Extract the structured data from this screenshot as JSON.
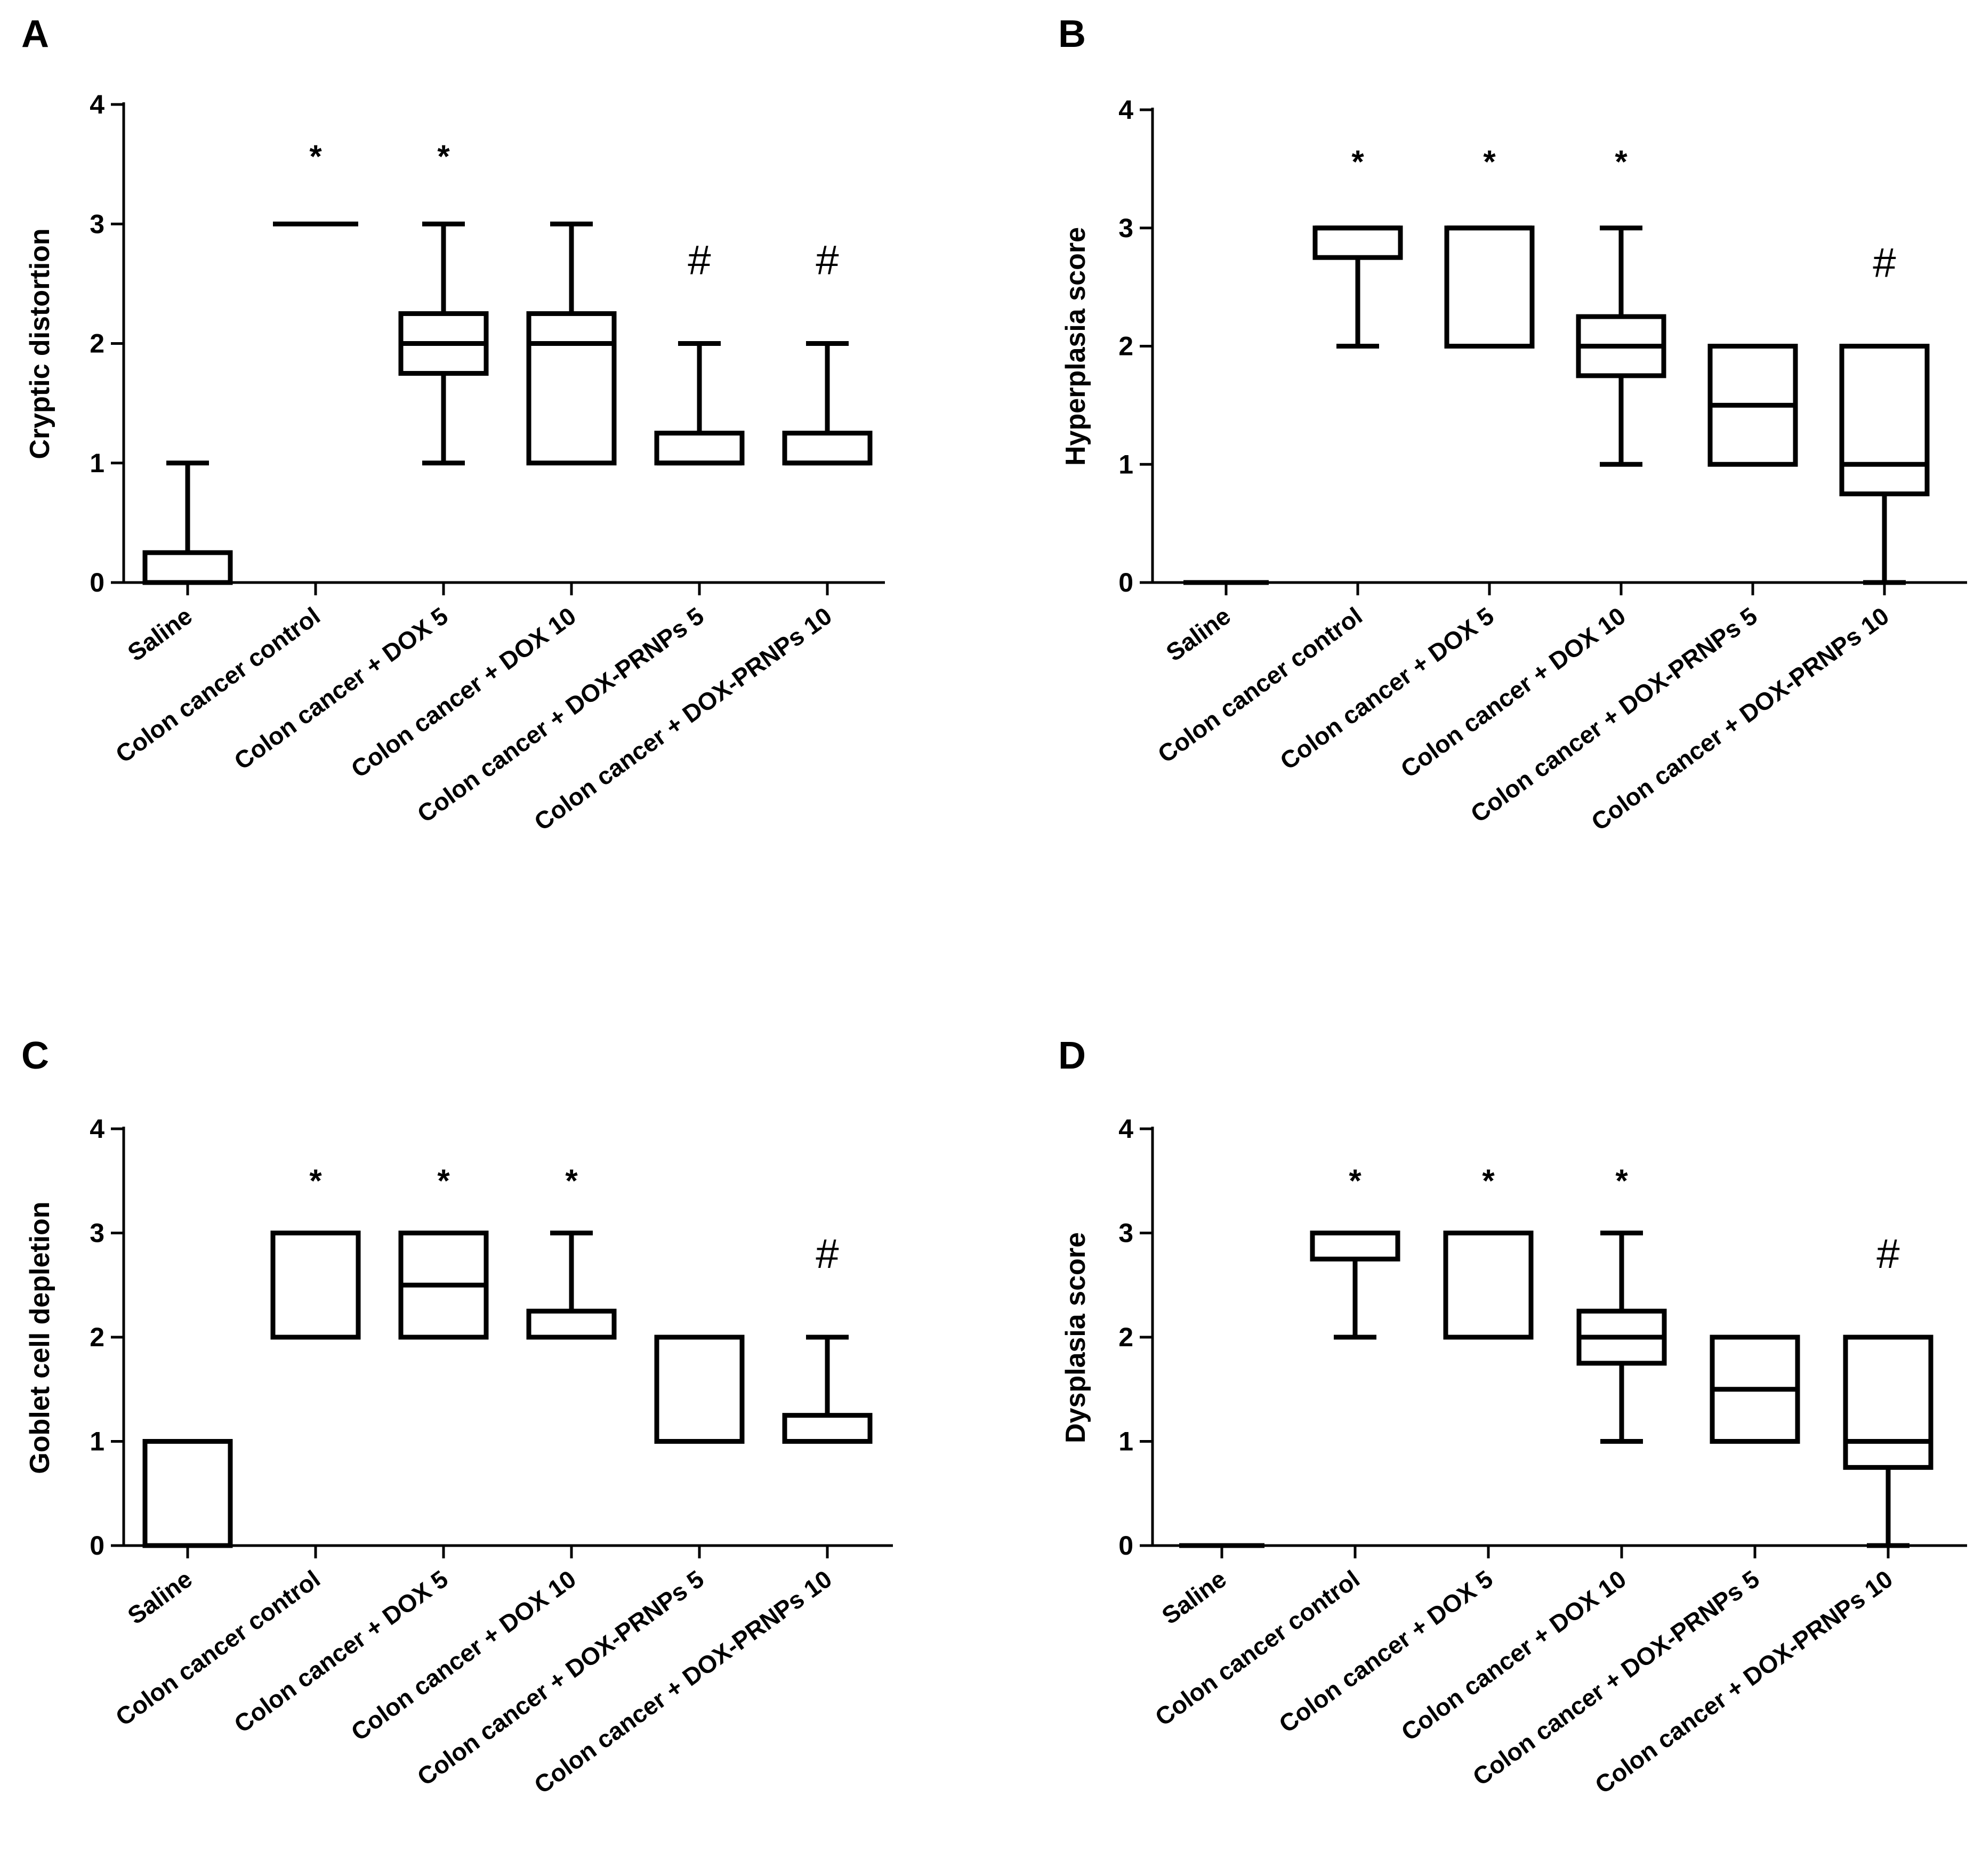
{
  "chart_data": [
    {
      "panel": "A",
      "type": "boxplot",
      "ylabel": "Cryptic distortion",
      "ylim": [
        0,
        4
      ],
      "yticks": [
        "0",
        "1",
        "2",
        "3",
        "4"
      ],
      "categories": [
        "Saline",
        "Colon cancer control",
        "Colon cancer + DOX 5",
        "Colon cancer + DOX 10",
        "Colon cancer + DOX-PRNPs 5",
        "Colon cancer + DOX-PRNPs 10"
      ],
      "boxes": [
        {
          "min": 0,
          "q1": 0,
          "median": 0,
          "q3": 0.25,
          "max": 1
        },
        {
          "min": 3,
          "q1": 3,
          "median": 3,
          "q3": 3,
          "max": 3
        },
        {
          "min": 1,
          "q1": 1.75,
          "median": 2,
          "q3": 2.25,
          "max": 3
        },
        {
          "min": 1,
          "q1": 1,
          "median": 2,
          "q3": 2.25,
          "max": 3
        },
        {
          "min": 1,
          "q1": 1,
          "median": 1,
          "q3": 1.25,
          "max": 2
        },
        {
          "min": 1,
          "q1": 1,
          "median": 1,
          "q3": 1.25,
          "max": 2
        }
      ],
      "annotations": [
        "",
        "*",
        "*",
        "",
        "#",
        "#"
      ]
    },
    {
      "panel": "B",
      "type": "boxplot",
      "ylabel": "Hyperplasia score",
      "ylim": [
        0,
        4
      ],
      "yticks": [
        "0",
        "1",
        "2",
        "3",
        "4"
      ],
      "categories": [
        "Saline",
        "Colon cancer control",
        "Colon cancer + DOX 5",
        "Colon cancer + DOX 10",
        "Colon cancer + DOX-PRNPs 5",
        "Colon cancer + DOX-PRNPs 10"
      ],
      "boxes": [
        {
          "min": 0,
          "q1": 0,
          "median": 0,
          "q3": 0,
          "max": 0
        },
        {
          "min": 2,
          "q1": 2.75,
          "median": 3,
          "q3": 3,
          "max": 3
        },
        {
          "min": 2,
          "q1": 2,
          "median": 3,
          "q3": 3,
          "max": 3
        },
        {
          "min": 1,
          "q1": 1.75,
          "median": 2,
          "q3": 2.25,
          "max": 3
        },
        {
          "min": 1,
          "q1": 1,
          "median": 1.5,
          "q3": 2,
          "max": 2
        },
        {
          "min": 0,
          "q1": 0.75,
          "median": 1,
          "q3": 2,
          "max": 2
        }
      ],
      "annotations": [
        "",
        "*",
        "*",
        "*",
        "",
        "#"
      ]
    },
    {
      "panel": "C",
      "type": "boxplot",
      "ylabel": "Goblet cell depletion",
      "ylim": [
        0,
        4
      ],
      "yticks": [
        "0",
        "1",
        "2",
        "3",
        "4"
      ],
      "categories": [
        "Saline",
        "Colon cancer control",
        "Colon cancer + DOX 5",
        "Colon cancer + DOX 10",
        "Colon cancer + DOX-PRNPs 5",
        "Colon cancer + DOX-PRNPs 10"
      ],
      "boxes": [
        {
          "min": 0,
          "q1": 0,
          "median": 1,
          "q3": 1,
          "max": 1
        },
        {
          "min": 2,
          "q1": 2,
          "median": 3,
          "q3": 3,
          "max": 3
        },
        {
          "min": 2,
          "q1": 2,
          "median": 2.5,
          "q3": 3,
          "max": 3
        },
        {
          "min": 2,
          "q1": 2,
          "median": 2,
          "q3": 2.25,
          "max": 3
        },
        {
          "min": 1,
          "q1": 1,
          "median": 2,
          "q3": 2,
          "max": 2
        },
        {
          "min": 1,
          "q1": 1,
          "median": 1,
          "q3": 1.25,
          "max": 2
        }
      ],
      "annotations": [
        "",
        "*",
        "*",
        "*",
        "",
        "#"
      ]
    },
    {
      "panel": "D",
      "type": "boxplot",
      "ylabel": "Dysplasia score",
      "ylim": [
        0,
        4
      ],
      "yticks": [
        "0",
        "1",
        "2",
        "3",
        "4"
      ],
      "categories": [
        "Saline",
        "Colon cancer control",
        "Colon cancer + DOX 5",
        "Colon cancer + DOX 10",
        "Colon cancer + DOX-PRNPs 5",
        "Colon cancer + DOX-PRNPs 10"
      ],
      "boxes": [
        {
          "min": 0,
          "q1": 0,
          "median": 0,
          "q3": 0,
          "max": 0
        },
        {
          "min": 2,
          "q1": 2.75,
          "median": 3,
          "q3": 3,
          "max": 3
        },
        {
          "min": 2,
          "q1": 2,
          "median": 3,
          "q3": 3,
          "max": 3
        },
        {
          "min": 1,
          "q1": 1.75,
          "median": 2,
          "q3": 2.25,
          "max": 3
        },
        {
          "min": 1,
          "q1": 1,
          "median": 1.5,
          "q3": 2,
          "max": 2
        },
        {
          "min": 0,
          "q1": 0.75,
          "median": 1,
          "q3": 2,
          "max": 2
        }
      ],
      "annotations": [
        "",
        "*",
        "*",
        "*",
        "",
        "#"
      ]
    }
  ]
}
